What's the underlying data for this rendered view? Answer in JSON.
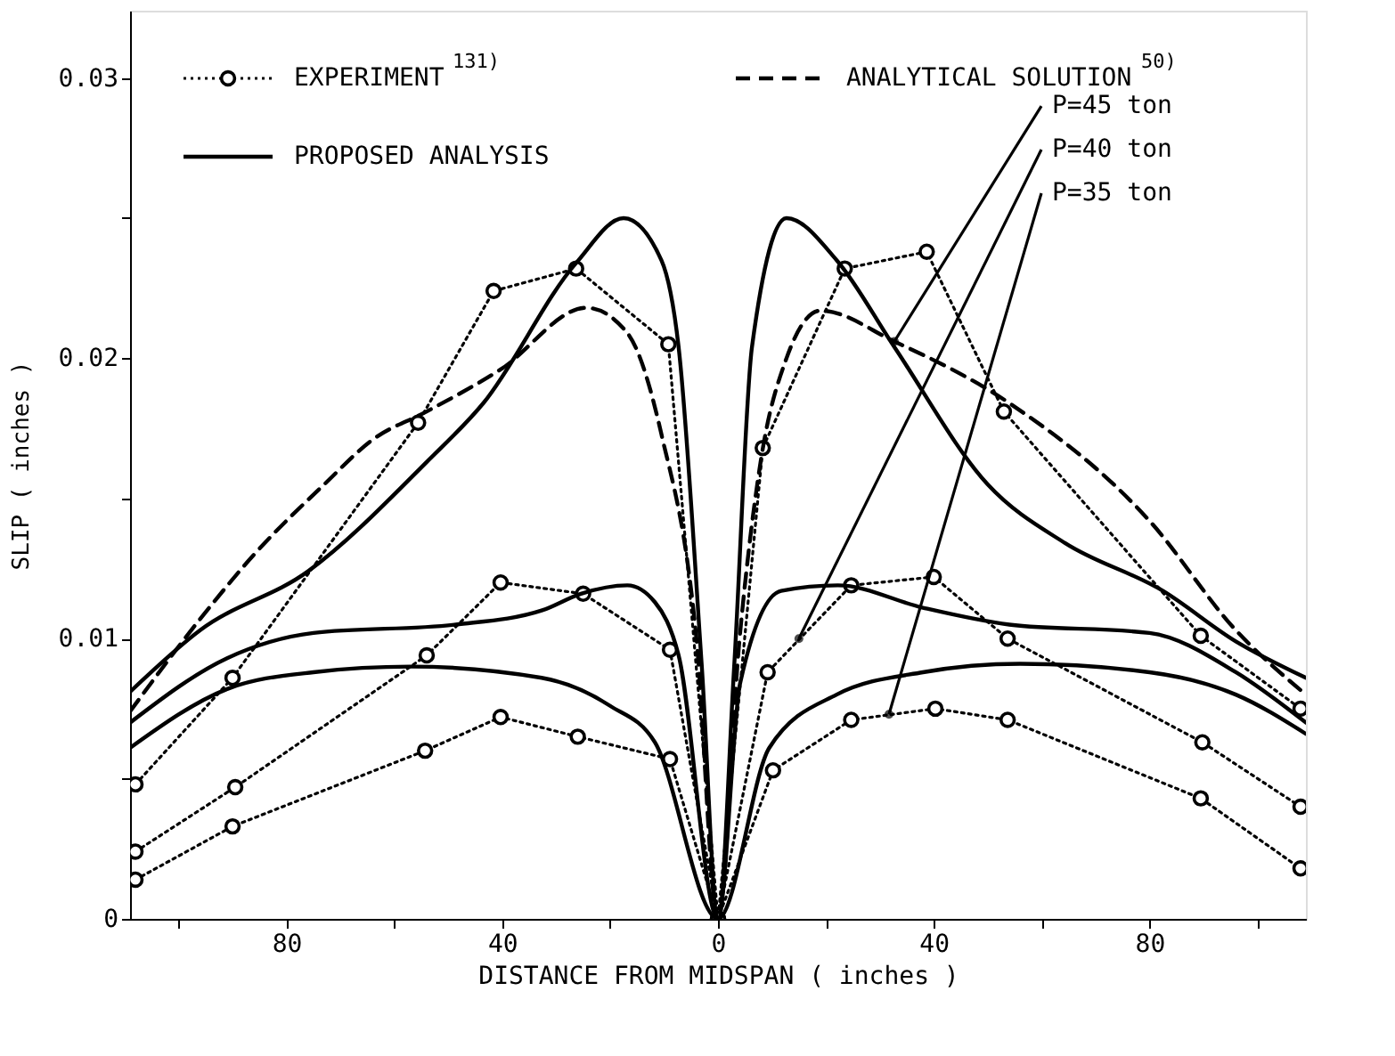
{
  "chart_data": {
    "type": "line",
    "xlabel": "DISTANCE FROM MIDSPAN ( inches )",
    "ylabel": "SLIP ( inches )",
    "xlim": [
      -109,
      109
    ],
    "ylim": [
      0,
      0.0324
    ],
    "xticks": [
      {
        "value": -100,
        "label": null
      },
      {
        "value": -80,
        "label": "80"
      },
      {
        "value": -60,
        "label": null
      },
      {
        "value": -40,
        "label": "40"
      },
      {
        "value": -20,
        "label": null
      },
      0,
      {
        "value": 20,
        "label": null
      },
      {
        "value": 40,
        "label": "40"
      },
      {
        "value": 60,
        "label": null
      },
      {
        "value": 80,
        "label": "80"
      },
      {
        "value": 100,
        "label": null
      }
    ],
    "yticks": [
      0,
      {
        "value": 0.005,
        "label": null
      },
      0.01,
      {
        "value": 0.015,
        "label": null
      },
      0.02,
      {
        "value": 0.025,
        "label": null
      },
      0.03
    ],
    "grid": false,
    "legend": "top left",
    "series": [
      {
        "name": "EXPERIMENT $^{131)}$",
        "color": "#000000",
        "line_style": "dotted",
        "marker": "circle",
        "x": [
          -108,
          -90,
          -55.6,
          -41.6,
          -26.3,
          -9.2,
          0,
          8.3,
          23.5,
          38.7,
          53,
          89.5,
          108
        ],
        "values": [
          0.0048,
          0.0086,
          0.0177,
          0.0224,
          0.0232,
          0.0205,
          0,
          0.0168,
          0.0232,
          0.0238,
          0.0181,
          0.0101,
          0.0075
        ]
      },
      {
        "color": "#000000",
        "line_style": "dotted",
        "marker": "circle",
        "x": [
          -108,
          -89.5,
          -54,
          -40.3,
          -25,
          -8.9,
          0,
          9.2,
          24.7,
          40,
          53.7,
          89.8,
          108
        ],
        "values": [
          0.0024,
          0.0047,
          0.0094,
          0.012,
          0.0116,
          0.0096,
          0,
          0.0088,
          0.0119,
          0.0122,
          0.01,
          0.0063,
          0.004
        ]
      },
      {
        "color": "#000000",
        "line_style": "dotted",
        "marker": "circle",
        "x": [
          -108,
          -90,
          -54.3,
          -40.3,
          -26,
          -8.9,
          0,
          10.2,
          24.7,
          40.3,
          53.7,
          89.5,
          108
        ],
        "values": [
          0.0014,
          0.0033,
          0.006,
          0.0072,
          0.0065,
          0.0057,
          0,
          0.0053,
          0.0071,
          0.0075,
          0.0071,
          0.0043,
          0.0018
        ]
      },
      {
        "name": "ANALYTICAL SOLUTION$^{50)}$",
        "color": "#000000",
        "line_style": "dashed",
        "marker": "none",
        "x": [
          -109,
          -96,
          -86,
          -73,
          -64,
          -54,
          -40.3,
          -24.4,
          -16.8,
          -10.5,
          -4,
          0,
          4,
          7.9,
          12.7,
          19,
          32.7,
          54,
          80,
          96,
          109
        ],
        "values": [
          0.0074,
          0.0107,
          0.013,
          0.0155,
          0.0171,
          0.0181,
          0.0196,
          0.0218,
          0.0209,
          0.0173,
          0.01,
          0,
          0.01,
          0.0163,
          0.02,
          0.0217,
          0.0206,
          0.0184,
          0.0142,
          0.0103,
          0.008
        ]
      },
      {
        "name": "PROPOSED ANALYSIS",
        "color": "#000000",
        "line_style": "solid",
        "marker": "none",
        "x": [
          -109,
          -96,
          -76,
          -54,
          -43.5,
          -26.3,
          -17.5,
          -10.5,
          -7.3,
          -3,
          0,
          3,
          6.3,
          12.7,
          22,
          32.7,
          50,
          64.4,
          82.5,
          96,
          109
        ],
        "values": [
          0.0081,
          0.0103,
          0.0124,
          0.0163,
          0.0184,
          0.0234,
          0.025,
          0.0235,
          0.0204,
          0.009,
          0,
          0.009,
          0.0204,
          0.025,
          0.0235,
          0.0204,
          0.0155,
          0.0134,
          0.0117,
          0.0099,
          0.0086
        ]
      },
      {
        "color": "#000000",
        "line_style": "solid",
        "marker": "none",
        "x": [
          -109,
          -91,
          -75,
          -48.6,
          -32.7,
          -25.4,
          -16.8,
          -11.7,
          -7.3,
          0,
          4.1,
          11.7,
          22.2,
          38,
          54,
          80,
          96,
          109
        ],
        "values": [
          0.007,
          0.0093,
          0.0102,
          0.0105,
          0.011,
          0.0116,
          0.0119,
          0.0113,
          0.0094,
          0,
          0.0084,
          0.0117,
          0.0119,
          0.0111,
          0.0105,
          0.0102,
          0.0088,
          0.007
        ]
      },
      {
        "color": "#000000",
        "line_style": "solid",
        "marker": "none",
        "x": [
          -109,
          -91,
          -75,
          -57,
          -32.7,
          -20,
          -11.7,
          0,
          9.5,
          22,
          38,
          56,
          80,
          96,
          109
        ],
        "values": [
          0.0061,
          0.0082,
          0.0088,
          0.009,
          0.0086,
          0.0076,
          0.0063,
          0,
          0.0061,
          0.008,
          0.0088,
          0.0091,
          0.0088,
          0.008,
          0.0066
        ]
      }
    ],
    "annotations": [
      {
        "text": "P=45 ton",
        "x": 32.7,
        "y": 0.0206
      },
      {
        "text": "P=40 ton",
        "x": 15,
        "y": 0.01
      },
      {
        "text": "P=35 ton",
        "x": 31.7,
        "y": 0.0073
      }
    ]
  }
}
